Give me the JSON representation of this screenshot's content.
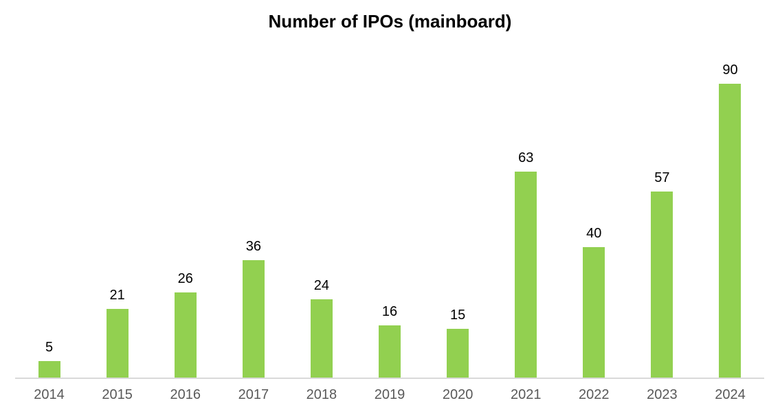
{
  "chart_data": {
    "type": "bar",
    "title": "Number of IPOs (mainboard)",
    "categories": [
      "2014",
      "2015",
      "2016",
      "2017",
      "2018",
      "2019",
      "2020",
      "2021",
      "2022",
      "2023",
      "2024"
    ],
    "values": [
      5,
      21,
      26,
      36,
      24,
      16,
      15,
      63,
      40,
      57,
      90
    ],
    "xlabel": "",
    "ylabel": "",
    "ylim": [
      0,
      90
    ],
    "grid": false,
    "legend": false,
    "data_labels_shown": true,
    "y_axis_shown": false,
    "colors": {
      "bar_fill": "#92D050",
      "axis_line": "#D9D9D9",
      "tick_label": "#595959",
      "data_label": "#000000",
      "title": "#000000",
      "background": "#ffffff"
    }
  }
}
